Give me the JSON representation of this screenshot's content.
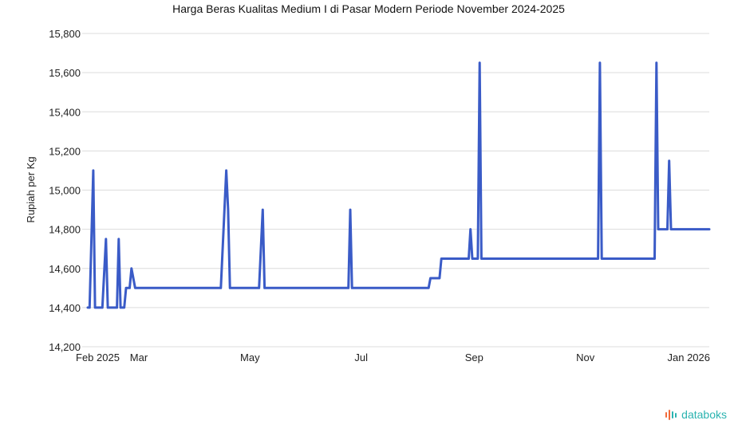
{
  "brand": {
    "name": "databoks",
    "icon": "databoks-logo-icon",
    "colors": [
      "#f26b3a",
      "#2bb3b0"
    ]
  },
  "colors": {
    "series": "#3a5bc7",
    "grid": "#dcdcdc"
  },
  "chart_data": {
    "type": "line",
    "title": "Harga Beras Kualitas Medium I di Pasar Modern Periode November 2024-2025",
    "xlabel": "",
    "ylabel": "Rupiah per Kg",
    "grid": true,
    "legend": "none",
    "ylim": [
      14200,
      15800
    ],
    "yticks": [
      14200,
      14400,
      14600,
      14800,
      15000,
      15200,
      15400,
      15600,
      15800
    ],
    "ytick_labels": [
      "14,200",
      "14,400",
      "14,600",
      "14,800",
      "15,000",
      "15,200",
      "15,400",
      "15,600",
      "15,800"
    ],
    "xlim": [
      "2025-02-01",
      "2026-01-08"
    ],
    "xticks": [
      "2025-02-01",
      "2025-03-01",
      "2025-05-01",
      "2025-07-01",
      "2025-09-01",
      "2025-11-01",
      "2026-01-01"
    ],
    "xtick_labels": [
      "Feb 2025",
      "Mar",
      "May",
      "Jul",
      "Sep",
      "Nov",
      "Jan 2026"
    ],
    "series": [
      {
        "x": [
          "2025-02-01",
          "2025-02-02",
          "2025-02-04",
          "2025-02-05",
          "2025-02-09",
          "2025-02-11",
          "2025-02-12",
          "2025-02-16",
          "2025-02-17",
          "2025-02-18",
          "2025-02-19",
          "2025-02-21",
          "2025-02-22",
          "2025-02-24",
          "2025-02-25",
          "2025-02-27",
          "2025-03-02",
          "2025-03-04",
          "2025-03-05",
          "2025-03-08",
          "2025-03-09",
          "2025-03-12",
          "2025-03-13",
          "2025-03-18",
          "2025-03-27",
          "2025-04-15",
          "2025-04-18",
          "2025-04-19",
          "2025-04-20",
          "2025-05-06",
          "2025-05-08",
          "2025-05-09",
          "2025-06-24",
          "2025-06-25",
          "2025-06-26",
          "2025-08-07",
          "2025-08-08",
          "2025-08-13",
          "2025-08-14",
          "2025-08-29",
          "2025-08-30",
          "2025-08-31",
          "2025-09-03",
          "2025-09-04",
          "2025-09-05",
          "2025-11-08",
          "2025-11-09",
          "2025-11-10",
          "2025-11-11",
          "2025-11-12",
          "2025-11-13",
          "2025-12-09",
          "2025-12-10",
          "2025-12-11",
          "2025-12-16",
          "2025-12-17",
          "2025-12-18",
          "2026-01-08"
        ],
        "values": [
          14400,
          14400,
          15100,
          14400,
          14400,
          14750,
          14400,
          14400,
          14400,
          14750,
          14400,
          14400,
          14500,
          14500,
          14600,
          14500,
          14500,
          14500,
          14500,
          14500,
          14500,
          14500,
          14500,
          14500,
          14500,
          14500,
          15100,
          14900,
          14500,
          14500,
          14900,
          14500,
          14500,
          14900,
          14500,
          14500,
          14550,
          14550,
          14650,
          14650,
          14800,
          14650,
          14650,
          15650,
          14650,
          14650,
          15650,
          14650,
          14650,
          14650,
          14650,
          14650,
          15650,
          14800,
          14800,
          15150,
          14800,
          14800
        ]
      }
    ]
  }
}
